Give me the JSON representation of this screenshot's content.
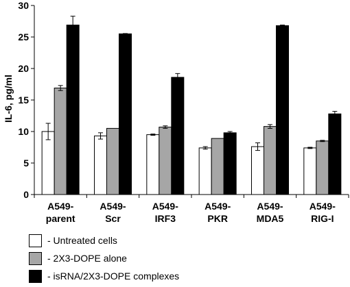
{
  "chart_data": {
    "type": "bar",
    "title": "",
    "xlabel": "",
    "ylabel": "IL-6, pg/ml",
    "ylim": [
      0,
      30
    ],
    "yticks": [
      0,
      5,
      10,
      15,
      20,
      25,
      30
    ],
    "grid": false,
    "legend_position": "bottom-left",
    "categories": [
      [
        "A549-",
        "parent"
      ],
      [
        "A549-",
        "Scr"
      ],
      [
        "A549-",
        "IRF3"
      ],
      [
        "A549-",
        "PKR"
      ],
      [
        "A549-",
        "MDA5"
      ],
      [
        "A549-",
        "RIG-I"
      ]
    ],
    "series": [
      {
        "name": "- Untreated cells",
        "color": "#ffffff",
        "values": [
          10.0,
          9.3,
          9.5,
          7.4,
          7.6,
          7.4
        ],
        "errors": [
          1.3,
          0.5,
          0.1,
          0.2,
          0.6,
          0.1
        ]
      },
      {
        "name": "- 2X3-DOPE alone",
        "color": "#a6a6a6",
        "values": [
          16.9,
          10.5,
          10.7,
          8.9,
          10.8,
          8.5
        ],
        "errors": [
          0.4,
          0.0,
          0.2,
          0.0,
          0.3,
          0.1
        ]
      },
      {
        "name": "- isRNA/2X3-DOPE complexes",
        "color": "#000000",
        "values": [
          26.9,
          25.5,
          18.6,
          9.8,
          26.8,
          12.8
        ],
        "errors": [
          1.4,
          0.05,
          0.6,
          0.2,
          0.1,
          0.4
        ]
      }
    ]
  }
}
